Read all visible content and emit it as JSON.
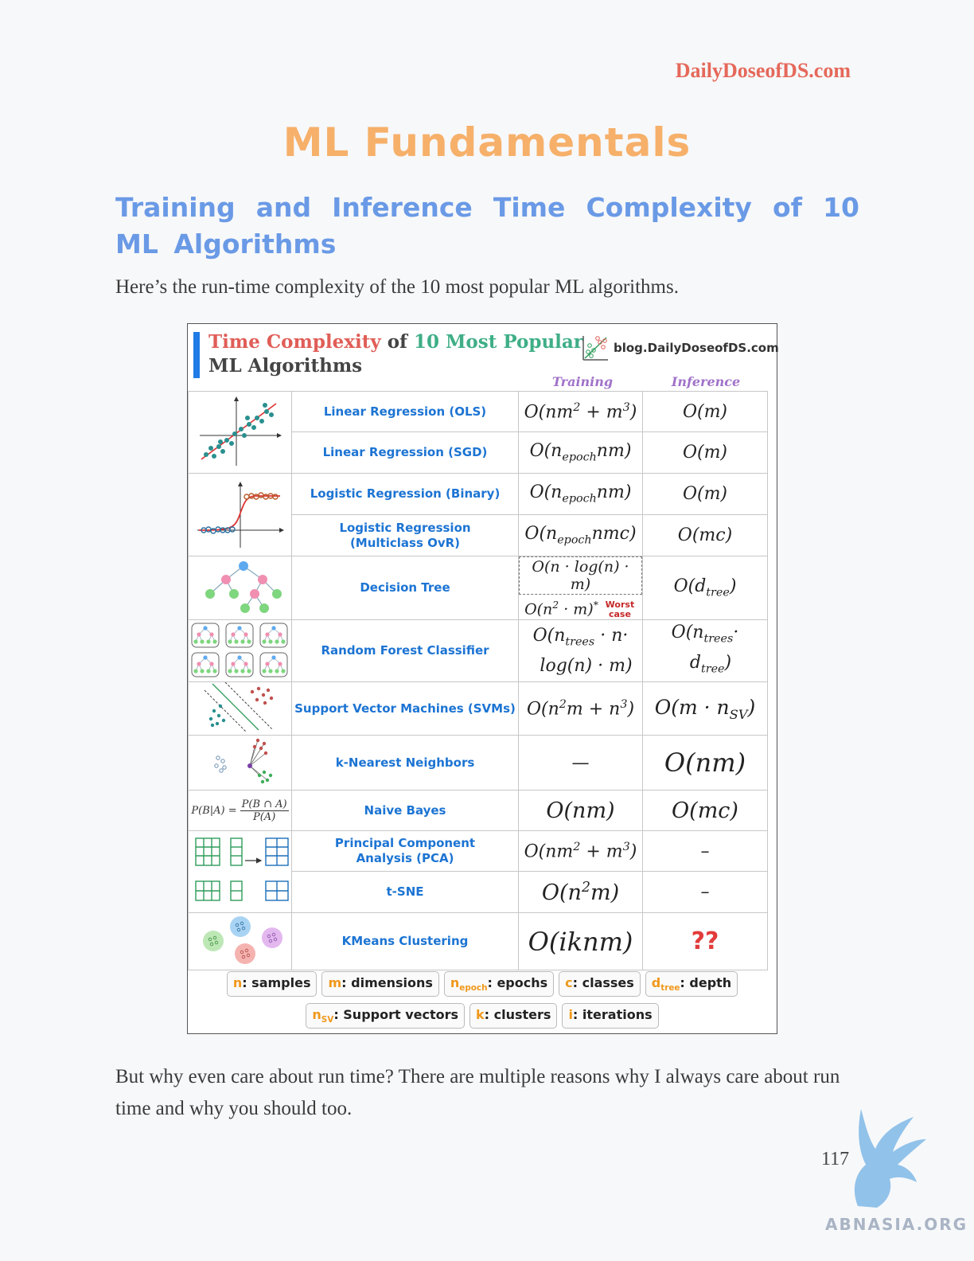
{
  "header": {
    "site": "DailyDoseofDS.com"
  },
  "title": "ML Fundamentals",
  "subtitle": "Training and Inference Time Complexity of 10 ML Algorithms",
  "intro": "Here’s the run-time complexity of the 10 most popular ML algorithms.",
  "figure": {
    "title_red": "Time Complexity",
    "title_of": " of ",
    "title_green": "10 Most Popular",
    "title_line2": "ML Algorithms",
    "brand": "blog.DailyDoseofDS.com",
    "col_training": "Training",
    "col_inference": "Inference",
    "rows": [
      {
        "name": "Linear Regression (OLS)"
      },
      {
        "name": "Linear Regression (SGD)"
      },
      {
        "name": "Logistic Regression (Binary)"
      },
      {
        "name": "Logistic Regression (Multiclass OvR)"
      },
      {
        "name": "Decision Tree"
      },
      {
        "name": "Random Forest Classifier"
      },
      {
        "name": "Support Vector Machines (SVMs)"
      },
      {
        "name": "k-Nearest Neighbors"
      },
      {
        "name": "Naive Bayes"
      },
      {
        "name": "Principal Component Analysis (PCA)"
      },
      {
        "name": "t-SNE"
      },
      {
        "name": "KMeans Clustering"
      }
    ],
    "worst_case": "Worst case",
    "unknown": "??",
    "dash": "—",
    "en_dash": "–",
    "legend_row1": [
      {
        "key": "n",
        "label": ": samples"
      },
      {
        "key": "m",
        "label": ": dimensions"
      },
      {
        "key": "n",
        "sub": "epoch",
        "label": ": epochs"
      },
      {
        "key": "c",
        "label": ": classes"
      },
      {
        "key": "d",
        "sub": "tree",
        "label": ": depth"
      }
    ],
    "legend_row2": [
      {
        "key": "n",
        "sub": "SV",
        "label": ": Support vectors"
      },
      {
        "key": "k",
        "label": ": clusters"
      },
      {
        "key": "i",
        "label": ": iterations"
      }
    ]
  },
  "outro": "But why even care about run time? There are multiple reasons why I always care about run time and why you should too.",
  "page_number": "117",
  "watermark": "ABNASIA.ORG",
  "colors": {
    "title": "#f6b06a",
    "subtitle": "#6a9ae6",
    "site": "#e5685a",
    "algo": "#1c74d3"
  }
}
